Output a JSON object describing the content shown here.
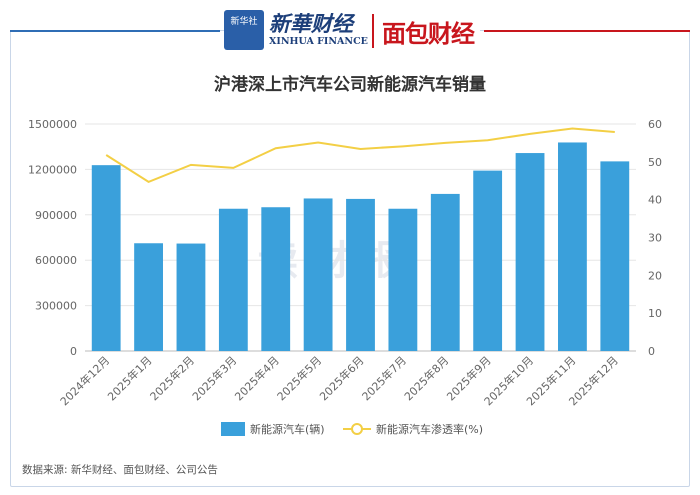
{
  "header": {
    "logo_box_text": "新华社",
    "xinhua_cn": "新華财经",
    "xinhua_en": "XINHUA FINANCE",
    "mianbao": "面包财经"
  },
  "watermark": "读财报",
  "source_note": "数据来源: 新华财经、面包财经、公司公告",
  "chart_data": {
    "type": "bar",
    "title": "沪港深上市汽车公司新能源汽车销量",
    "categories": [
      "2024年12月",
      "2025年1月",
      "2025年2月",
      "2025年3月",
      "2025年4月",
      "2025年5月",
      "2025年6月",
      "2025年7月",
      "2025年8月",
      "2025年9月",
      "2025年10月",
      "2025年11月",
      "2025年12月"
    ],
    "series": [
      {
        "name": "新能源汽车(辆)",
        "type": "bar",
        "axis": "left",
        "color": "#3aa0db",
        "values": [
          1228000,
          712000,
          710000,
          940000,
          950000,
          1008000,
          1005000,
          940000,
          1038000,
          1192000,
          1308000,
          1378000,
          1253000
        ]
      },
      {
        "name": "新能源汽车渗透率(%)",
        "type": "line",
        "axis": "right",
        "color": "#f3cf45",
        "values": [
          51.8,
          44.7,
          49.2,
          48.4,
          53.6,
          55.1,
          53.4,
          54.1,
          55.0,
          55.7,
          57.4,
          58.8,
          57.9
        ]
      }
    ],
    "y_left": {
      "min": 0,
      "max": 1500000,
      "ticks": [
        "0",
        "300000",
        "600000",
        "900000",
        "1200000",
        "1500000"
      ]
    },
    "y_right": {
      "min": 0,
      "max": 60,
      "ticks": [
        "0",
        "10",
        "20",
        "30",
        "40",
        "50",
        "60"
      ]
    },
    "legend_position": "bottom-center",
    "grid": true
  }
}
